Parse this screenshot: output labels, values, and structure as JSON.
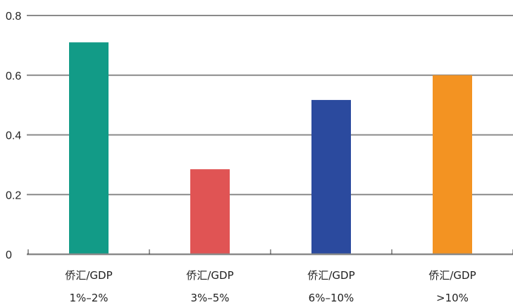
{
  "chart_data": {
    "type": "bar",
    "categories": [
      {
        "line1": "侨汇/GDP",
        "line2": "1%–2%"
      },
      {
        "line1": "侨汇/GDP",
        "line2": "3%–5%"
      },
      {
        "line1": "侨汇/GDP",
        "line2": "6%–10%"
      },
      {
        "line1": "侨汇/GDP",
        "line2": ">10%"
      }
    ],
    "values": [
      0.71,
      0.285,
      0.517,
      0.6
    ],
    "colors": [
      "#129B87",
      "#E05454",
      "#2B4A9E",
      "#F39322"
    ],
    "ylim": [
      0,
      0.8
    ],
    "yticks": [
      "0",
      "0.2",
      "0.4",
      "0.6",
      "0.8"
    ],
    "title": "",
    "xlabel": "",
    "ylabel": "",
    "grid": true,
    "legend": "none"
  }
}
